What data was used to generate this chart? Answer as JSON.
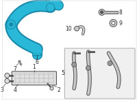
{
  "bg_color": "#ffffff",
  "border_color": "#cccccc",
  "hose_color": "#29b8d8",
  "hose_outline": "#1a8aaa",
  "part_color": "#888888",
  "part_outline": "#555555",
  "box_color": "#f0f0f0",
  "box_outline": "#aaaaaa",
  "label_color": "#222222",
  "label_fontsize": 5.5,
  "figsize": [
    2.0,
    1.47
  ],
  "dpi": 100
}
